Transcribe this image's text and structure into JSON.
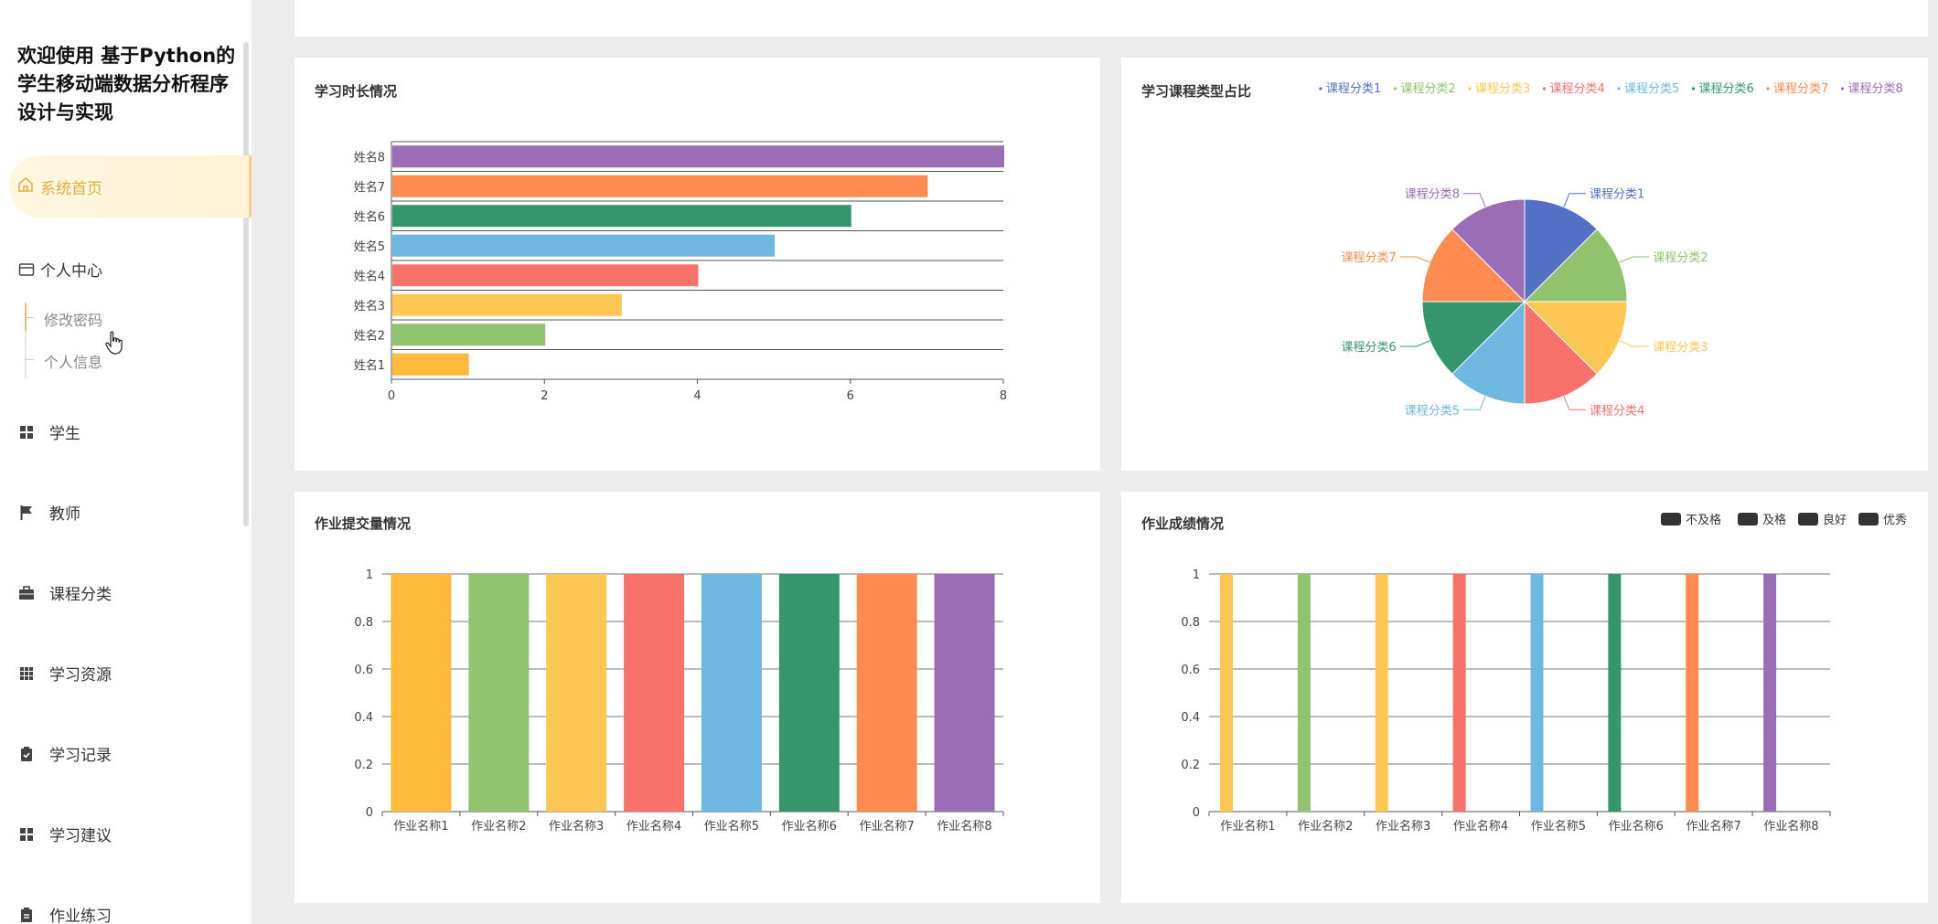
{
  "app": {
    "title_line1": "欢迎使用 基于Python的",
    "title_line2": "学生移动端数据分析程序",
    "title_line3": "设计与实现"
  },
  "nav": {
    "home": "系统首页",
    "personal_center": "个人中心",
    "sub": [
      "修改密码",
      "个人信息"
    ],
    "items": [
      "学生",
      "教师",
      "课程分类",
      "学习资源",
      "学习记录",
      "学习建议",
      "作业练习"
    ]
  },
  "colors": {
    "accent": "#e2ad42",
    "c1": "#5470c6",
    "c2": "#91cc75",
    "c3": "#fac858",
    "c4": "#ee6666",
    "c5": "#73c0de",
    "c6": "#3ba272",
    "c7": "#fc8452",
    "c8": "#9a60b4"
  },
  "chart_data": [
    {
      "type": "bar",
      "orientation": "horizontal",
      "title": "学习时长情况",
      "categories": [
        "姓名1",
        "姓名2",
        "姓名3",
        "姓名4",
        "姓名5",
        "姓名6",
        "姓名7",
        "姓名8"
      ],
      "values": [
        1,
        2,
        3,
        4,
        5,
        6,
        7,
        8
      ],
      "colors": [
        "#ffb93b",
        "#91c26e",
        "#ffc654",
        "#f8726b",
        "#6cb8e0",
        "#35966e",
        "#ff8c4e",
        "#9b6db7"
      ],
      "xlim": [
        0,
        8
      ],
      "xticks": [
        0,
        2,
        4,
        6,
        8
      ]
    },
    {
      "type": "pie",
      "title": "学习课程类型占比",
      "labels": [
        "课程分类1",
        "课程分类2",
        "课程分类3",
        "课程分类4",
        "课程分类5",
        "课程分类6",
        "课程分类7",
        "课程分类8"
      ],
      "values": [
        1,
        1,
        1,
        1,
        1,
        1,
        1,
        1
      ],
      "colors": [
        "#5470c6",
        "#91c26e",
        "#ffc654",
        "#f8726b",
        "#6cb8e0",
        "#35966e",
        "#ff8c4e",
        "#9b6db7"
      ],
      "legend": "top-right"
    },
    {
      "type": "bar",
      "title": "作业提交量情况",
      "categories": [
        "作业名称1",
        "作业名称2",
        "作业名称3",
        "作业名称4",
        "作业名称5",
        "作业名称6",
        "作业名称7",
        "作业名称8"
      ],
      "values": [
        1,
        1,
        1,
        1,
        1,
        1,
        1,
        1
      ],
      "colors": [
        "#ffb93b",
        "#91c26e",
        "#ffc654",
        "#f8726b",
        "#6cb8e0",
        "#35966e",
        "#ff8c4e",
        "#9b6db7"
      ],
      "ylim": [
        0,
        1
      ],
      "yticks": [
        "0",
        "0.2",
        "0.4",
        "0.6",
        "0.8",
        "1"
      ]
    },
    {
      "type": "bar",
      "title": "作业成绩情况",
      "categories": [
        "作业名称1",
        "作业名称2",
        "作业名称3",
        "作业名称4",
        "作业名称5",
        "作业名称6",
        "作业名称7",
        "作业名称8"
      ],
      "series": [
        {
          "name": "不及格",
          "values": [
            1,
            1,
            1,
            1,
            1,
            1,
            1,
            1
          ]
        },
        {
          "name": "及格",
          "values": [
            0,
            0,
            0,
            0,
            0,
            0,
            0,
            0
          ]
        },
        {
          "name": "良好",
          "values": [
            0,
            0,
            0,
            0,
            0,
            0,
            0,
            0
          ]
        },
        {
          "name": "优秀",
          "values": [
            0,
            0,
            0,
            0,
            0,
            0,
            0,
            0
          ]
        }
      ],
      "colors": [
        "#ffc654",
        "#91c26e",
        "#ffc654",
        "#f8726b",
        "#6cb8e0",
        "#35966e",
        "#ff8c4e",
        "#9b6db7"
      ],
      "legend_color": "#333333",
      "ylim": [
        0,
        1
      ],
      "yticks": [
        "0",
        "0.2",
        "0.4",
        "0.6",
        "0.8",
        "1"
      ]
    }
  ]
}
